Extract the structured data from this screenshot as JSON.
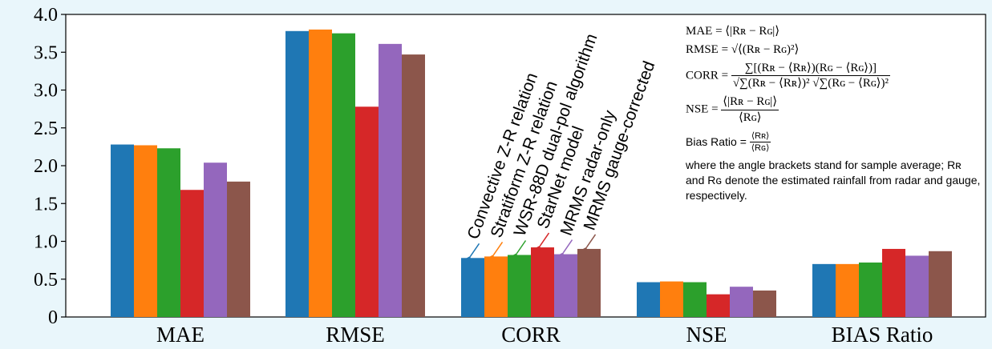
{
  "chart_data": {
    "type": "bar",
    "categories": [
      "MAE",
      "RMSE",
      "CORR",
      "NSE",
      "BIAS Ratio"
    ],
    "series": [
      {
        "name": "Convective Z-R relation",
        "color": "#1f77b4",
        "values": [
          2.28,
          3.78,
          0.78,
          0.46,
          0.7
        ]
      },
      {
        "name": "Stratiform Z-R relation",
        "color": "#ff7f0e",
        "values": [
          2.27,
          3.8,
          0.8,
          0.47,
          0.7
        ]
      },
      {
        "name": "WSR-88D dual-pol algorithm",
        "color": "#2ca02c",
        "values": [
          2.23,
          3.75,
          0.82,
          0.46,
          0.72
        ]
      },
      {
        "name": "StarNet model",
        "color": "#d62728",
        "values": [
          1.68,
          2.78,
          0.92,
          0.3,
          0.9
        ]
      },
      {
        "name": "MRMS radar-only",
        "color": "#9467bd",
        "values": [
          2.04,
          3.61,
          0.83,
          0.4,
          0.81
        ]
      },
      {
        "name": "MRMS gauge-corrected",
        "color": "#8c564b",
        "values": [
          1.79,
          3.47,
          0.9,
          0.35,
          0.87
        ]
      }
    ],
    "yticks": [
      "0",
      "0.5",
      "1.0",
      "1.5",
      "2.0",
      "2.5",
      "3.0",
      "3.5",
      "4.0"
    ],
    "ylim": [
      0,
      4.0
    ],
    "legend_placement": "rotated labels above CORR bars with arrows"
  },
  "formulas": {
    "mae_lhs": "MAE =",
    "mae_rhs": "⟨|Rʀ − Rɢ|⟩",
    "rmse_lhs": "RMSE =",
    "rmse_rhs": "√⟨(Rʀ − Rɢ)²⟩",
    "corr_lhs": "CORR =",
    "corr_num": "∑[(Rʀ − ⟨Rʀ⟩)(Rɢ − ⟨Rɢ⟩)]",
    "corr_den": "√∑(Rʀ − ⟨Rʀ⟩)² √∑(Rɢ − ⟨Rɢ⟩)²",
    "nse_lhs": "NSE =",
    "nse_num": "⟨|Rʀ − Rɢ|⟩",
    "nse_den": "⟨Rɢ⟩",
    "bias_lhs": "Bias Ratio =",
    "bias_num": "⟨Rʀ⟩",
    "bias_den": "⟨Rɢ⟩",
    "note": "where the angle brackets stand for sample average; Rʀ and Rɢ denote the estimated rainfall from radar and gauge, respectively."
  }
}
